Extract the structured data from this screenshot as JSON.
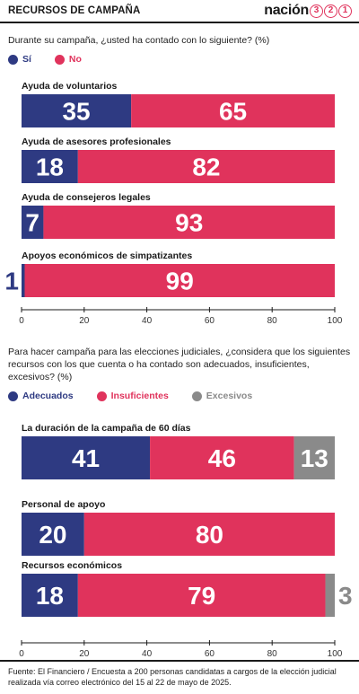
{
  "header": {
    "title": "RECURSOS DE CAMPAÑA",
    "logo_word": "nación",
    "logo_digits": [
      "3",
      "2",
      "1"
    ]
  },
  "colors": {
    "si": "#2e3a82",
    "no": "#e0335c",
    "adecuado": "#2e3a82",
    "insuficiente": "#e0335c",
    "excesivo": "#8a8a8a"
  },
  "chart_data": [
    {
      "type": "bar",
      "orientation": "horizontal",
      "stacked": true,
      "title": "Durante su campaña, ¿usted ha contado con lo siguiente? (%)",
      "categories": [
        "Ayuda de voluntarios",
        "Ayuda de asesores profesionales",
        "Ayuda de consejeros legales",
        "Apoyos económicos de simpatizantes"
      ],
      "series": [
        {
          "name": "Sí",
          "values": [
            35,
            18,
            7,
            1
          ]
        },
        {
          "name": "No",
          "values": [
            65,
            82,
            93,
            99
          ]
        }
      ],
      "xticks": [
        "0",
        "20",
        "40",
        "60",
        "80",
        "100"
      ],
      "xlim": [
        0,
        100
      ],
      "legend": "top-left"
    },
    {
      "type": "bar",
      "orientation": "horizontal",
      "stacked": true,
      "title": "Para hacer campaña para las elecciones judiciales, ¿considera que los siguientes recursos con los que cuenta o ha contado son adecuados, insuficientes, excesivos? (%)",
      "categories": [
        "La duración de la campaña de 60 días",
        "Personal de apoyo",
        "Recursos económicos"
      ],
      "series": [
        {
          "name": "Adecuados",
          "values": [
            41,
            20,
            18
          ]
        },
        {
          "name": "Insuficientes",
          "values": [
            46,
            80,
            79
          ]
        },
        {
          "name": "Excesivos",
          "values": [
            13,
            0,
            3
          ]
        }
      ],
      "xticks": [
        "0",
        "20",
        "40",
        "60",
        "80",
        "100"
      ],
      "xlim": [
        0,
        100
      ],
      "legend": "top-left"
    }
  ],
  "footer": {
    "source": "Fuente: El Financiero / Encuesta a 200 personas candidatas a cargos de la elección judicial realizada vía correo electrónico del 15 al 22 de mayo de 2025."
  }
}
